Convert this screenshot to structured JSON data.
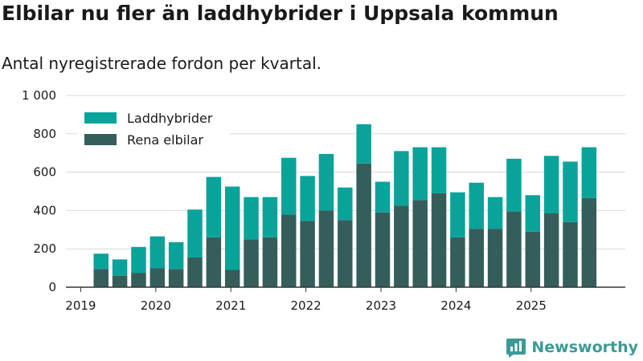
{
  "header": {
    "title": "Elbilar nu fler än laddhybrider i Uppsala kommun",
    "subtitle": "Antal nyregistrerade fordon per kvartal."
  },
  "brand": {
    "name": "Newsworthy"
  },
  "colors": {
    "rena_elbilar": "#355e5b",
    "laddhybrider": "#0aa39a",
    "grid": "#d9d9d9",
    "axis": "#333333",
    "brand": "#3d9a97"
  },
  "chart_data": {
    "type": "bar",
    "stacked": true,
    "title": "Elbilar nu fler än laddhybrider i Uppsala kommun",
    "subtitle": "Antal nyregistrerade fordon per kvartal.",
    "xlabel": "",
    "ylabel": "",
    "ylim": [
      0,
      1000
    ],
    "yticks": [
      0,
      200,
      400,
      600,
      800,
      1000
    ],
    "ytick_labels": [
      "0",
      "200",
      "400",
      "600",
      "800",
      "1 000"
    ],
    "grid": true,
    "legend_position": "top-left",
    "year_labels": [
      "2019",
      "2020",
      "2021",
      "2022",
      "2023",
      "2024",
      "2025"
    ],
    "categories": [
      "2019 Q2",
      "2019 Q3",
      "2019 Q4",
      "2020 Q1",
      "2020 Q2",
      "2020 Q3",
      "2020 Q4",
      "2021 Q1",
      "2021 Q2",
      "2021 Q3",
      "2021 Q4",
      "2022 Q1",
      "2022 Q2",
      "2022 Q3",
      "2022 Q4",
      "2023 Q1",
      "2023 Q2",
      "2023 Q3",
      "2023 Q4",
      "2024 Q1",
      "2024 Q2",
      "2024 Q3",
      "2024 Q4",
      "2025 Q1",
      "2025 Q2",
      "2025 Q3",
      "2025 Q4"
    ],
    "series": [
      {
        "name": "Rena elbilar",
        "values": [
          95,
          60,
          75,
          100,
          95,
          155,
          260,
          90,
          250,
          260,
          380,
          345,
          400,
          350,
          645,
          390,
          425,
          455,
          490,
          260,
          305,
          305,
          395,
          290,
          385,
          340,
          465
        ]
      },
      {
        "name": "Laddhybrider",
        "values": [
          80,
          85,
          135,
          165,
          140,
          250,
          315,
          435,
          220,
          210,
          295,
          235,
          295,
          170,
          205,
          160,
          285,
          275,
          240,
          235,
          240,
          165,
          275,
          190,
          300,
          315,
          265
        ]
      }
    ]
  }
}
